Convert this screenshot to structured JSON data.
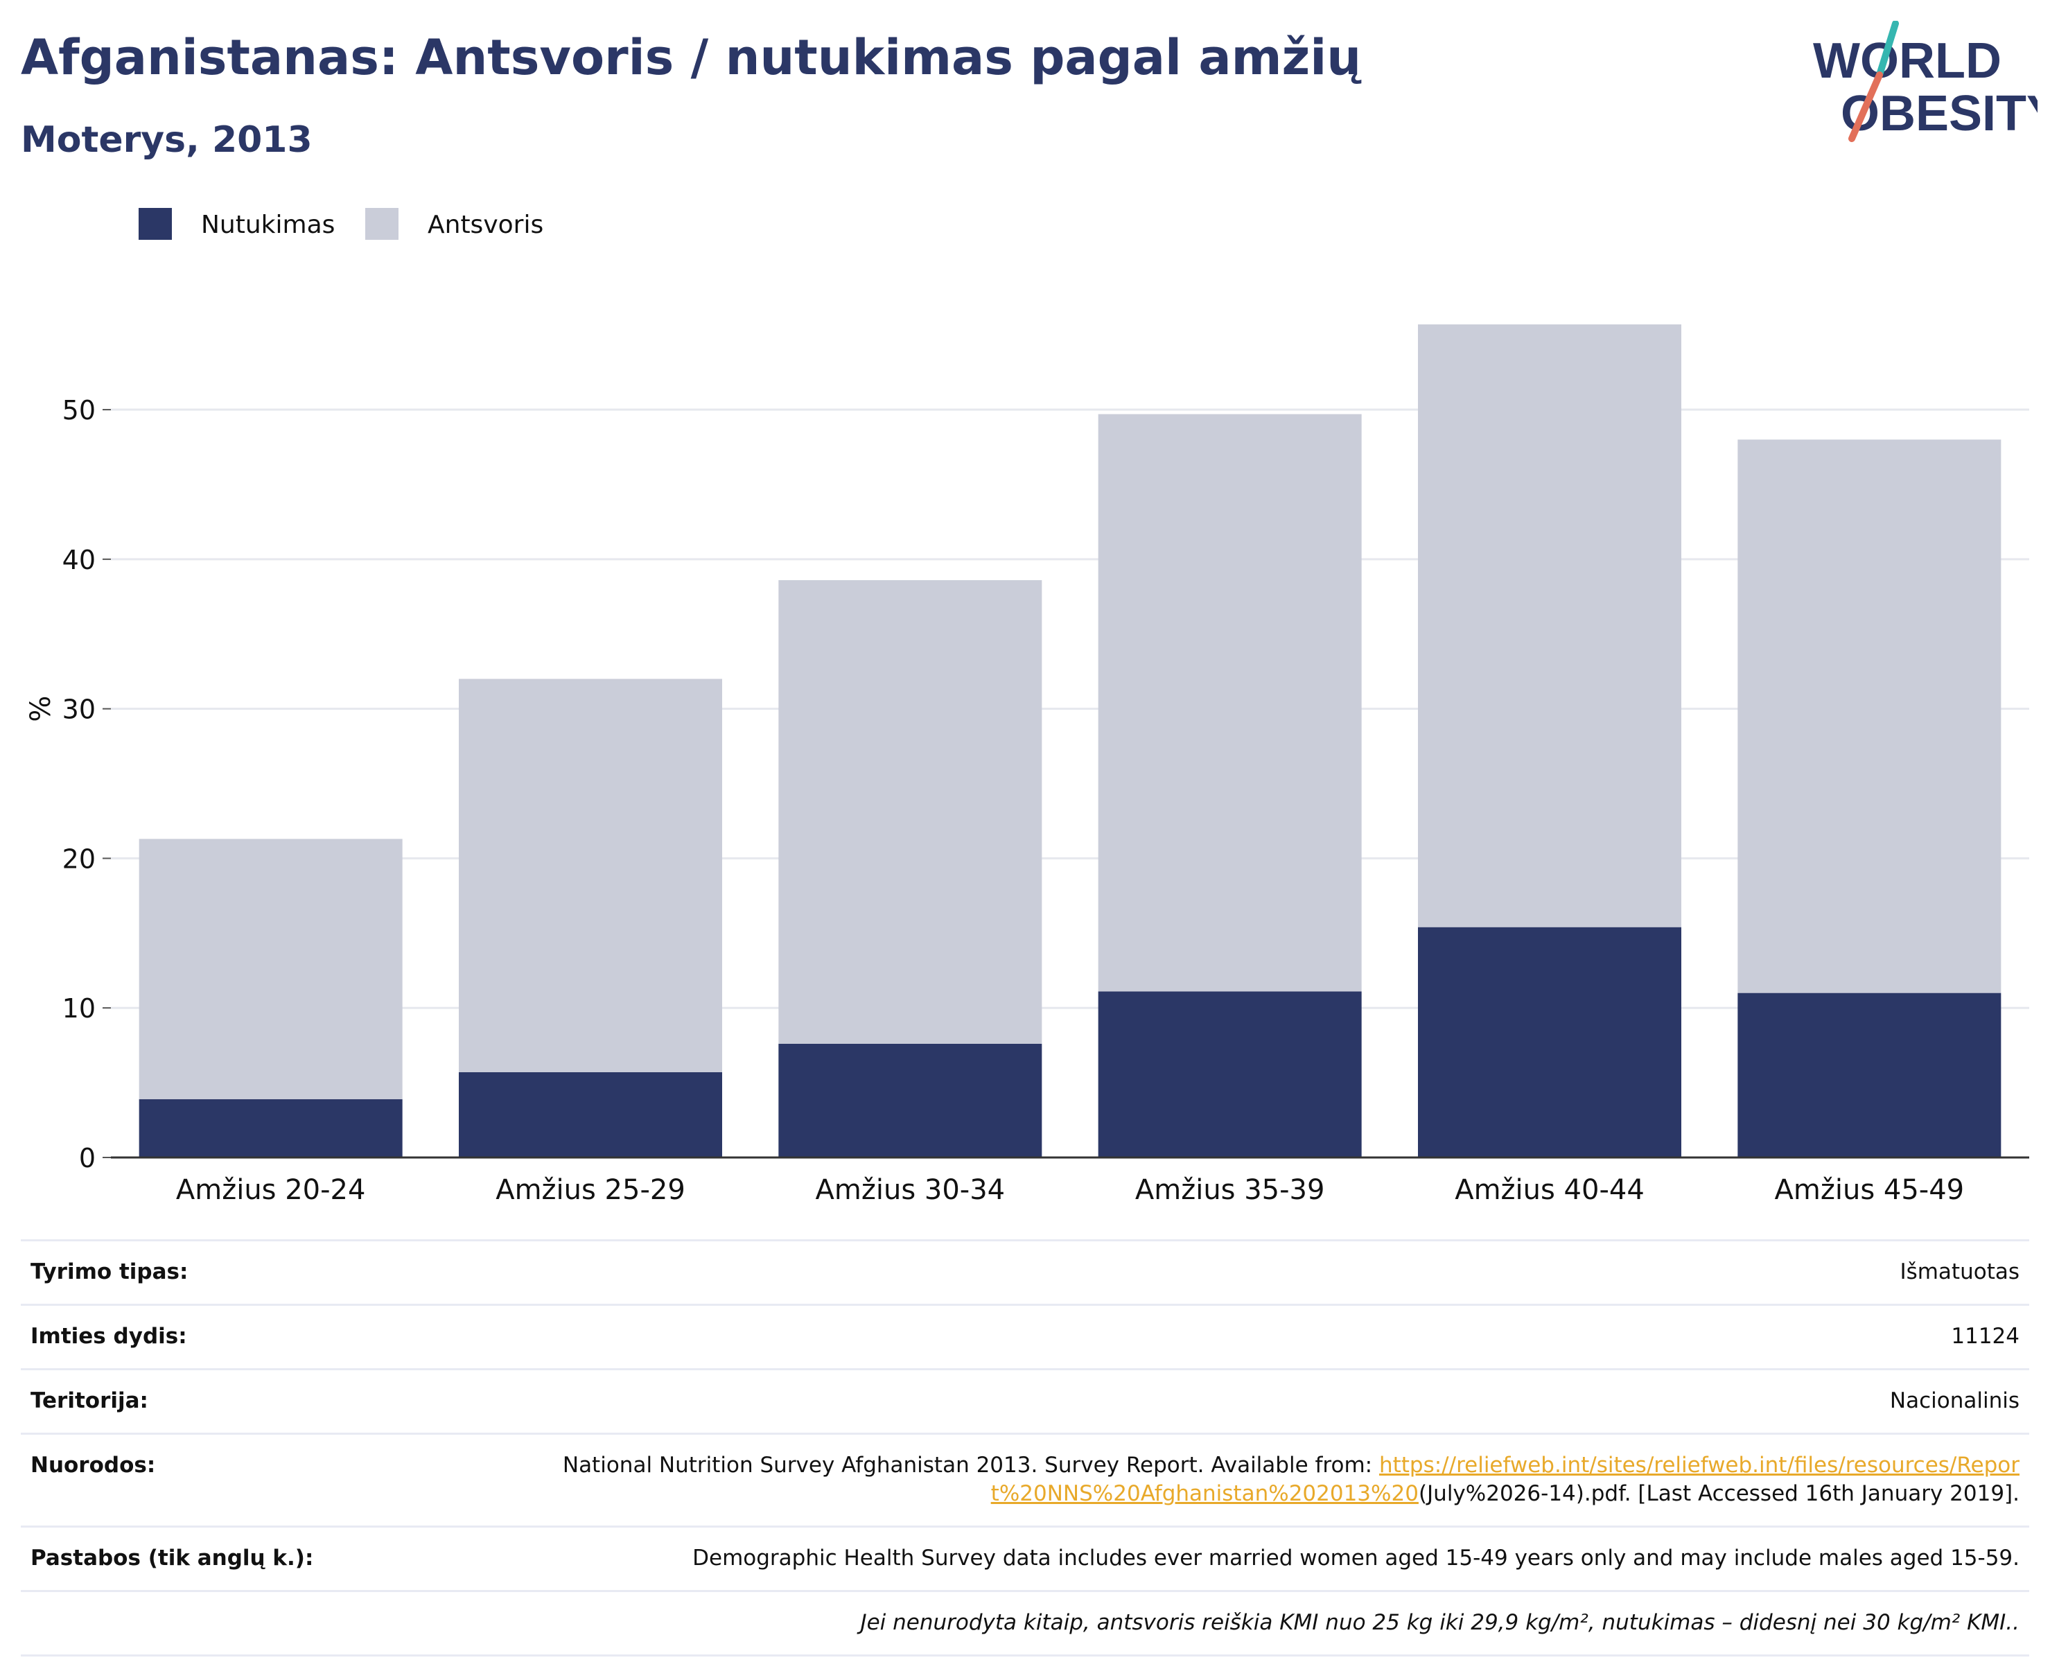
{
  "header": {
    "title": "Afganistanas: Antsvoris / nutukimas pagal amžių",
    "subtitle": "Moterys, 2013"
  },
  "logo": {
    "line1": "WORLD",
    "line2": "OBESITY",
    "text_color": "#2b3766",
    "slash_colors": [
      "#e2705a",
      "#35b6b0"
    ]
  },
  "legend": [
    {
      "name": "Nutukimas",
      "color": "#2b3766"
    },
    {
      "name": "Antsvoris",
      "color": "#cacdd9"
    }
  ],
  "chart_data": {
    "type": "bar",
    "stacked": true,
    "categories": [
      "Amžius 20-24",
      "Amžius 25-29",
      "Amžius 30-34",
      "Amžius 35-39",
      "Amžius 40-44",
      "Amžius 45-49"
    ],
    "series": [
      {
        "name": "Nutukimas",
        "color": "#2b3766",
        "values": [
          3.9,
          5.7,
          7.6,
          11.1,
          15.4,
          11.0
        ]
      },
      {
        "name": "Antsvoris",
        "color": "#cacdd9",
        "values": [
          17.4,
          26.3,
          31.0,
          38.6,
          40.3,
          37.0
        ]
      }
    ],
    "ylabel": "%",
    "xlabel": "",
    "ylim": [
      0,
      57
    ],
    "yticks": [
      0,
      10,
      20,
      30,
      40,
      50
    ],
    "grid": true,
    "legend_position": "top-left"
  },
  "info": {
    "rows": [
      {
        "label": "Tyrimo tipas:",
        "value": "Išmatuotas"
      },
      {
        "label": "Imties dydis:",
        "value": "11124"
      },
      {
        "label": "Teritorija:",
        "value": "Nacionalinis"
      }
    ],
    "references": {
      "label": "Nuorodos:",
      "text_before": "National Nutrition Survey Afghanistan 2013. Survey Report. Available from: ",
      "link": "https://reliefweb.int/sites/reliefweb.int/files/resources/Report%20NNS%20Afghanistan%202013%20",
      "text_after": "(July%2026-14).pdf. [Last Accessed 16th January 2019]."
    },
    "notes": {
      "label": "Pastabos (tik anglų k.):",
      "value": "Demographic Health Survey data includes ever married women aged 15-49 years only and may include males aged 15-59."
    },
    "footnote": "Jei nenurodyta kitaip, antsvoris reiškia KMI nuo 25 kg iki 29,9 kg/m², nutukimas – didesnį nei 30 kg/m² KMI.."
  }
}
